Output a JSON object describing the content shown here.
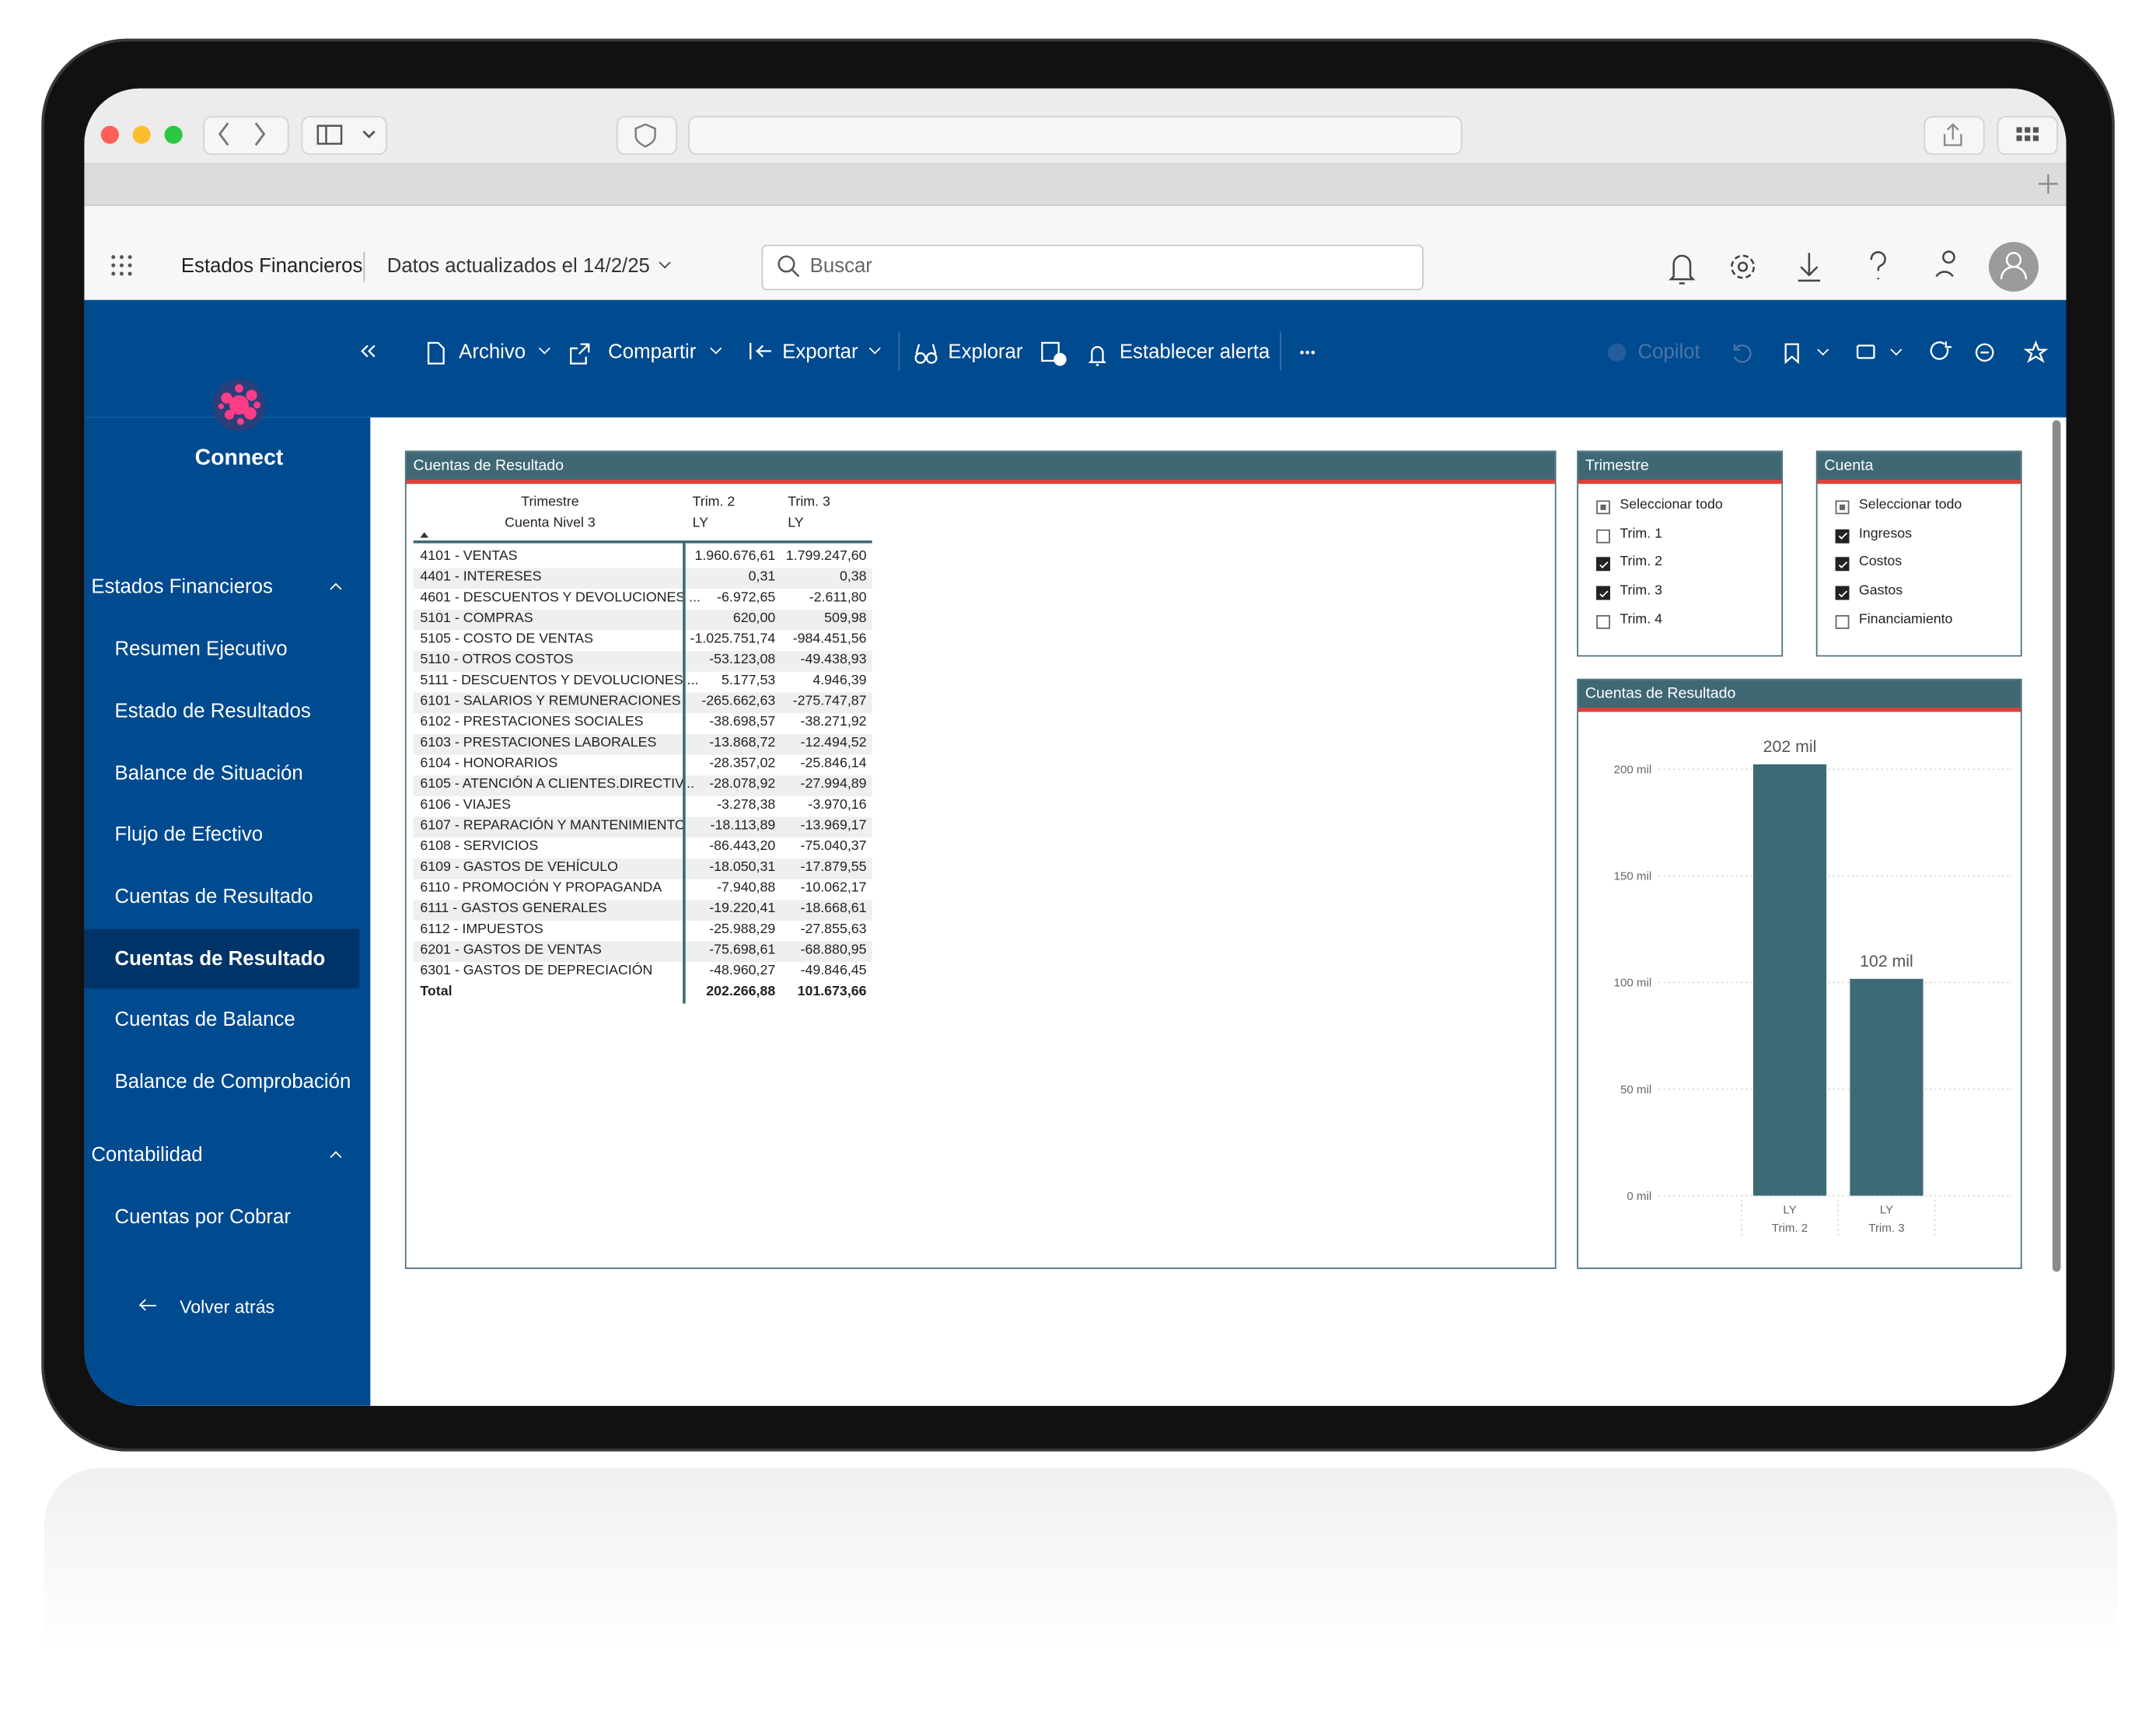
{
  "header": {
    "app_title": "Estados Financieros",
    "updated": "Datos actualizados el 14/2/25",
    "search_placeholder": "Buscar"
  },
  "toolbar": {
    "items": [
      "Archivo",
      "Compartir",
      "Exportar",
      "Explorar",
      "Establecer alerta"
    ],
    "copilot": "Copilot"
  },
  "sidebar": {
    "brand": "Connect",
    "sections": [
      {
        "title": "Estados Financieros",
        "items": [
          "Resumen Ejecutivo",
          "Estado de Resultados",
          "Balance de Situación",
          "Flujo de Efectivo",
          "Cuentas de Resultado",
          "Cuentas de Resultado",
          "Cuentas de Balance",
          "Balance de Comprobación"
        ]
      },
      {
        "title": "Contabilidad",
        "items": [
          "Cuentas por Cobrar"
        ]
      }
    ],
    "active": {
      "section": 0,
      "item": 5
    },
    "back": "Volver atrás"
  },
  "table": {
    "title": "Cuentas de Resultado",
    "header": {
      "row1": [
        "Trimestre",
        "Trim. 2",
        "Trim. 3"
      ],
      "row2": [
        "Cuenta Nivel 3",
        "LY",
        "LY"
      ]
    },
    "rows": [
      [
        "4101 - VENTAS",
        "1.960.676,61",
        "1.799.247,60"
      ],
      [
        "4401 - INTERESES",
        "0,31",
        "0,38"
      ],
      [
        "4601 - DESCUENTOS Y DEVOLUCIONES ...",
        "-6.972,65",
        "-2.611,80"
      ],
      [
        "5101 - COMPRAS",
        "620,00",
        "509,98"
      ],
      [
        "5105 - COSTO DE VENTAS",
        "-1.025.751,74",
        "-984.451,56"
      ],
      [
        "5110 - OTROS COSTOS",
        "-53.123,08",
        "-49.438,93"
      ],
      [
        "5111 - DESCUENTOS Y DEVOLUCIONES ...",
        "5.177,53",
        "4.946,39"
      ],
      [
        "6101 - SALARIOS Y REMUNERACIONES",
        "-265.662,63",
        "-275.747,87"
      ],
      [
        "6102 - PRESTACIONES SOCIALES",
        "-38.698,57",
        "-38.271,92"
      ],
      [
        "6103 - PRESTACIONES LABORALES",
        "-13.868,72",
        "-12.494,52"
      ],
      [
        "6104 - HONORARIOS",
        "-28.357,02",
        "-25.846,14"
      ],
      [
        "6105 - ATENCIÓN A CLIENTES.DIRECTIV...",
        "-28.078,92",
        "-27.994,89"
      ],
      [
        "6106 - VIAJES",
        "-3.278,38",
        "-3.970,16"
      ],
      [
        "6107 - REPARACIÓN Y MANTENIMIENTO",
        "-18.113,89",
        "-13.969,17"
      ],
      [
        "6108 - SERVICIOS",
        "-86.443,20",
        "-75.040,37"
      ],
      [
        "6109 - GASTOS DE VEHÍCULO",
        "-18.050,31",
        "-17.879,55"
      ],
      [
        "6110 - PROMOCIÓN Y PROPAGANDA",
        "-7.940,88",
        "-10.062,17"
      ],
      [
        "6111 - GASTOS GENERALES",
        "-19.220,41",
        "-18.668,61"
      ],
      [
        "6112 - IMPUESTOS",
        "-25.988,29",
        "-27.855,63"
      ],
      [
        "6201 - GASTOS DE VENTAS",
        "-75.698,61",
        "-68.880,95"
      ],
      [
        "6301 - GASTOS DE DEPRECIACIÓN",
        "-48.960,27",
        "-49.846,45"
      ]
    ],
    "total": [
      "Total",
      "202.266,88",
      "101.673,66"
    ]
  },
  "slicers": [
    {
      "title": "Trimestre",
      "items": [
        {
          "label": "Seleccionar todo",
          "state": "partial"
        },
        {
          "label": "Trim. 1",
          "state": "unchecked"
        },
        {
          "label": "Trim. 2",
          "state": "checked"
        },
        {
          "label": "Trim. 3",
          "state": "checked"
        },
        {
          "label": "Trim. 4",
          "state": "unchecked"
        }
      ]
    },
    {
      "title": "Cuenta",
      "items": [
        {
          "label": "Seleccionar todo",
          "state": "partial"
        },
        {
          "label": "Ingresos",
          "state": "checked"
        },
        {
          "label": "Costos",
          "state": "checked"
        },
        {
          "label": "Gastos",
          "state": "checked"
        },
        {
          "label": "Financiamiento",
          "state": "unchecked"
        }
      ]
    }
  ],
  "chart_data": {
    "type": "bar",
    "title": "Cuentas de Resultado",
    "categories": [
      "Trim. 2",
      "Trim. 3"
    ],
    "series": [
      {
        "name": "LY",
        "color": "#3d6a77",
        "values": [
          202.27,
          101.67
        ],
        "value_labels": [
          "202 mil",
          "102 mil"
        ]
      }
    ],
    "ylim": [
      0,
      210
    ],
    "yticks": [
      {
        "value": 0,
        "label": "0 mil"
      },
      {
        "value": 50,
        "label": "50 mil"
      },
      {
        "value": 100,
        "label": "100 mil"
      },
      {
        "value": 150,
        "label": "150 mil"
      },
      {
        "value": 200,
        "label": "200 mil"
      }
    ],
    "grid": true
  }
}
